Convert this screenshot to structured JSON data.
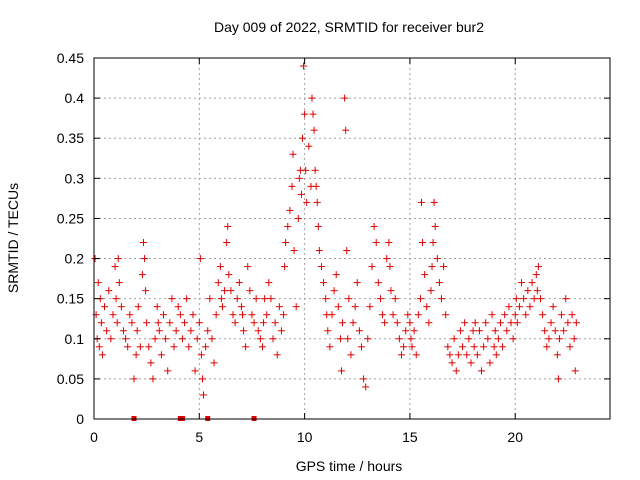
{
  "chart_data": {
    "type": "scatter",
    "title": "Day 009 of 2022, SRMTID for receiver bur2",
    "xlabel": "GPS time / hours",
    "ylabel": "SRMTID / TECUs",
    "xlim": [
      0,
      24.5
    ],
    "ylim": [
      0,
      0.45
    ],
    "xticks": [
      0,
      5,
      10,
      15,
      20
    ],
    "xtick_labels": [
      "0",
      "5",
      "10",
      "15",
      "20"
    ],
    "yticks": [
      0,
      0.05,
      0.1,
      0.15,
      0.2,
      0.25,
      0.3,
      0.35,
      0.4,
      0.45
    ],
    "ytick_labels": [
      "0",
      "0.05",
      "0.1",
      "0.15",
      "0.2",
      "0.25",
      "0.3",
      "0.35",
      "0.4",
      "0.45"
    ],
    "grid": true,
    "marker": "+",
    "color": "#e00000",
    "zero_markers_x": [
      1.9,
      4.1,
      4.2,
      5.4,
      7.6
    ],
    "series": [
      {
        "name": "SRMTID",
        "points": [
          [
            0.05,
            0.2
          ],
          [
            0.1,
            0.13
          ],
          [
            0.15,
            0.1
          ],
          [
            0.2,
            0.17
          ],
          [
            0.25,
            0.09
          ],
          [
            0.3,
            0.15
          ],
          [
            0.35,
            0.12
          ],
          [
            0.4,
            0.08
          ],
          [
            0.5,
            0.14
          ],
          [
            0.6,
            0.11
          ],
          [
            0.7,
            0.16
          ],
          [
            0.8,
            0.1
          ],
          [
            0.9,
            0.13
          ],
          [
            1.0,
            0.19
          ],
          [
            1.05,
            0.15
          ],
          [
            1.1,
            0.12
          ],
          [
            1.15,
            0.2
          ],
          [
            1.2,
            0.17
          ],
          [
            1.3,
            0.14
          ],
          [
            1.4,
            0.11
          ],
          [
            1.5,
            0.1
          ],
          [
            1.6,
            0.09
          ],
          [
            1.7,
            0.13
          ],
          [
            1.8,
            0.12
          ],
          [
            1.9,
            0.05
          ],
          [
            2.0,
            0.08
          ],
          [
            2.05,
            0.11
          ],
          [
            2.1,
            0.14
          ],
          [
            2.2,
            0.09
          ],
          [
            2.3,
            0.18
          ],
          [
            2.35,
            0.22
          ],
          [
            2.4,
            0.2
          ],
          [
            2.45,
            0.16
          ],
          [
            2.5,
            0.12
          ],
          [
            2.6,
            0.09
          ],
          [
            2.7,
            0.07
          ],
          [
            2.8,
            0.05
          ],
          [
            2.9,
            0.1
          ],
          [
            3.0,
            0.14
          ],
          [
            3.05,
            0.12
          ],
          [
            3.1,
            0.11
          ],
          [
            3.2,
            0.08
          ],
          [
            3.3,
            0.13
          ],
          [
            3.4,
            0.1
          ],
          [
            3.5,
            0.06
          ],
          [
            3.6,
            0.12
          ],
          [
            3.7,
            0.15
          ],
          [
            3.8,
            0.09
          ],
          [
            3.9,
            0.11
          ],
          [
            4.0,
            0.14
          ],
          [
            4.1,
            0.13
          ],
          [
            4.2,
            0.1
          ],
          [
            4.3,
            0.12
          ],
          [
            4.4,
            0.15
          ],
          [
            4.5,
            0.09
          ],
          [
            4.6,
            0.11
          ],
          [
            4.7,
            0.13
          ],
          [
            4.8,
            0.06
          ],
          [
            4.9,
            0.1
          ],
          [
            5.0,
            0.12
          ],
          [
            5.05,
            0.2
          ],
          [
            5.1,
            0.08
          ],
          [
            5.15,
            0.05
          ],
          [
            5.2,
            0.03
          ],
          [
            5.3,
            0.09
          ],
          [
            5.4,
            0.11
          ],
          [
            5.5,
            0.15
          ],
          [
            5.6,
            0.1
          ],
          [
            5.7,
            0.07
          ],
          [
            5.8,
            0.13
          ],
          [
            5.9,
            0.17
          ],
          [
            6.0,
            0.19
          ],
          [
            6.05,
            0.15
          ],
          [
            6.1,
            0.14
          ],
          [
            6.2,
            0.16
          ],
          [
            6.3,
            0.22
          ],
          [
            6.35,
            0.24
          ],
          [
            6.4,
            0.18
          ],
          [
            6.5,
            0.16
          ],
          [
            6.6,
            0.13
          ],
          [
            6.7,
            0.12
          ],
          [
            6.8,
            0.15
          ],
          [
            6.9,
            0.17
          ],
          [
            7.0,
            0.14
          ],
          [
            7.05,
            0.13
          ],
          [
            7.1,
            0.11
          ],
          [
            7.2,
            0.09
          ],
          [
            7.3,
            0.19
          ],
          [
            7.4,
            0.16
          ],
          [
            7.5,
            0.13
          ],
          [
            7.6,
            0.12
          ],
          [
            7.7,
            0.15
          ],
          [
            7.8,
            0.11
          ],
          [
            7.9,
            0.1
          ],
          [
            8.0,
            0.09
          ],
          [
            8.05,
            0.12
          ],
          [
            8.1,
            0.15
          ],
          [
            8.2,
            0.13
          ],
          [
            8.3,
            0.17
          ],
          [
            8.4,
            0.15
          ],
          [
            8.5,
            0.1
          ],
          [
            8.6,
            0.12
          ],
          [
            8.7,
            0.08
          ],
          [
            8.8,
            0.14
          ],
          [
            8.9,
            0.11
          ],
          [
            9.0,
            0.13
          ],
          [
            9.05,
            0.19
          ],
          [
            9.1,
            0.22
          ],
          [
            9.2,
            0.24
          ],
          [
            9.3,
            0.26
          ],
          [
            9.4,
            0.29
          ],
          [
            9.45,
            0.33
          ],
          [
            9.5,
            0.21
          ],
          [
            9.6,
            0.14
          ],
          [
            9.7,
            0.25
          ],
          [
            9.75,
            0.3
          ],
          [
            9.8,
            0.31
          ],
          [
            9.85,
            0.28
          ],
          [
            9.9,
            0.35
          ],
          [
            9.95,
            0.44
          ],
          [
            10.0,
            0.38
          ],
          [
            10.05,
            0.31
          ],
          [
            10.1,
            0.27
          ],
          [
            10.2,
            0.34
          ],
          [
            10.3,
            0.29
          ],
          [
            10.35,
            0.4
          ],
          [
            10.4,
            0.38
          ],
          [
            10.45,
            0.36
          ],
          [
            10.5,
            0.31
          ],
          [
            10.55,
            0.29
          ],
          [
            10.6,
            0.27
          ],
          [
            10.65,
            0.24
          ],
          [
            10.7,
            0.21
          ],
          [
            10.8,
            0.19
          ],
          [
            10.9,
            0.17
          ],
          [
            11.0,
            0.15
          ],
          [
            11.05,
            0.13
          ],
          [
            11.1,
            0.11
          ],
          [
            11.2,
            0.09
          ],
          [
            11.3,
            0.13
          ],
          [
            11.4,
            0.16
          ],
          [
            11.5,
            0.18
          ],
          [
            11.6,
            0.14
          ],
          [
            11.7,
            0.1
          ],
          [
            11.75,
            0.06
          ],
          [
            11.8,
            0.12
          ],
          [
            11.9,
            0.4
          ],
          [
            11.95,
            0.36
          ],
          [
            12.0,
            0.21
          ],
          [
            12.05,
            0.1
          ],
          [
            12.1,
            0.15
          ],
          [
            12.2,
            0.08
          ],
          [
            12.3,
            0.12
          ],
          [
            12.4,
            0.14
          ],
          [
            12.5,
            0.17
          ],
          [
            12.6,
            0.11
          ],
          [
            12.7,
            0.09
          ],
          [
            12.8,
            0.05
          ],
          [
            12.9,
            0.04
          ],
          [
            13.0,
            0.1
          ],
          [
            13.1,
            0.14
          ],
          [
            13.2,
            0.19
          ],
          [
            13.3,
            0.24
          ],
          [
            13.4,
            0.22
          ],
          [
            13.5,
            0.17
          ],
          [
            13.6,
            0.15
          ],
          [
            13.7,
            0.13
          ],
          [
            13.8,
            0.12
          ],
          [
            13.9,
            0.2
          ],
          [
            14.0,
            0.22
          ],
          [
            14.05,
            0.19
          ],
          [
            14.1,
            0.16
          ],
          [
            14.2,
            0.13
          ],
          [
            14.3,
            0.15
          ],
          [
            14.4,
            0.12
          ],
          [
            14.5,
            0.1
          ],
          [
            14.6,
            0.08
          ],
          [
            14.7,
            0.09
          ],
          [
            14.8,
            0.11
          ],
          [
            14.9,
            0.13
          ],
          [
            15.0,
            0.12
          ],
          [
            15.05,
            0.1
          ],
          [
            15.1,
            0.09
          ],
          [
            15.2,
            0.11
          ],
          [
            15.3,
            0.08
          ],
          [
            15.4,
            0.13
          ],
          [
            15.5,
            0.15
          ],
          [
            15.55,
            0.27
          ],
          [
            15.6,
            0.22
          ],
          [
            15.7,
            0.18
          ],
          [
            15.8,
            0.14
          ],
          [
            15.9,
            0.12
          ],
          [
            16.0,
            0.16
          ],
          [
            16.05,
            0.19
          ],
          [
            16.1,
            0.22
          ],
          [
            16.15,
            0.27
          ],
          [
            16.2,
            0.24
          ],
          [
            16.3,
            0.2
          ],
          [
            16.4,
            0.17
          ],
          [
            16.5,
            0.15
          ],
          [
            16.6,
            0.19
          ],
          [
            16.7,
            0.13
          ],
          [
            16.8,
            0.09
          ],
          [
            16.9,
            0.08
          ],
          [
            17.0,
            0.07
          ],
          [
            17.1,
            0.1
          ],
          [
            17.2,
            0.06
          ],
          [
            17.3,
            0.08
          ],
          [
            17.4,
            0.11
          ],
          [
            17.5,
            0.09
          ],
          [
            17.6,
            0.12
          ],
          [
            17.7,
            0.08
          ],
          [
            17.8,
            0.1
          ],
          [
            17.9,
            0.07
          ],
          [
            18.0,
            0.11
          ],
          [
            18.05,
            0.09
          ],
          [
            18.1,
            0.12
          ],
          [
            18.2,
            0.08
          ],
          [
            18.3,
            0.11
          ],
          [
            18.4,
            0.06
          ],
          [
            18.5,
            0.09
          ],
          [
            18.6,
            0.12
          ],
          [
            18.7,
            0.1
          ],
          [
            18.8,
            0.07
          ],
          [
            18.9,
            0.13
          ],
          [
            19.0,
            0.09
          ],
          [
            19.05,
            0.11
          ],
          [
            19.1,
            0.08
          ],
          [
            19.2,
            0.1
          ],
          [
            19.3,
            0.12
          ],
          [
            19.4,
            0.09
          ],
          [
            19.5,
            0.13
          ],
          [
            19.6,
            0.11
          ],
          [
            19.7,
            0.14
          ],
          [
            19.8,
            0.12
          ],
          [
            19.9,
            0.1
          ],
          [
            20.0,
            0.13
          ],
          [
            20.05,
            0.15
          ],
          [
            20.1,
            0.12
          ],
          [
            20.2,
            0.14
          ],
          [
            20.3,
            0.17
          ],
          [
            20.4,
            0.15
          ],
          [
            20.5,
            0.13
          ],
          [
            20.6,
            0.16
          ],
          [
            20.7,
            0.14
          ],
          [
            20.8,
            0.17
          ],
          [
            20.9,
            0.15
          ],
          [
            21.0,
            0.18
          ],
          [
            21.05,
            0.16
          ],
          [
            21.1,
            0.19
          ],
          [
            21.2,
            0.15
          ],
          [
            21.3,
            0.13
          ],
          [
            21.4,
            0.11
          ],
          [
            21.5,
            0.09
          ],
          [
            21.6,
            0.1
          ],
          [
            21.7,
            0.12
          ],
          [
            21.8,
            0.14
          ],
          [
            21.9,
            0.11
          ],
          [
            22.0,
            0.08
          ],
          [
            22.05,
            0.05
          ],
          [
            22.1,
            0.1
          ],
          [
            22.2,
            0.13
          ],
          [
            22.3,
            0.11
          ],
          [
            22.4,
            0.15
          ],
          [
            22.5,
            0.12
          ],
          [
            22.6,
            0.09
          ],
          [
            22.7,
            0.13
          ],
          [
            22.8,
            0.1
          ],
          [
            22.85,
            0.06
          ],
          [
            22.9,
            0.12
          ]
        ]
      }
    ]
  }
}
